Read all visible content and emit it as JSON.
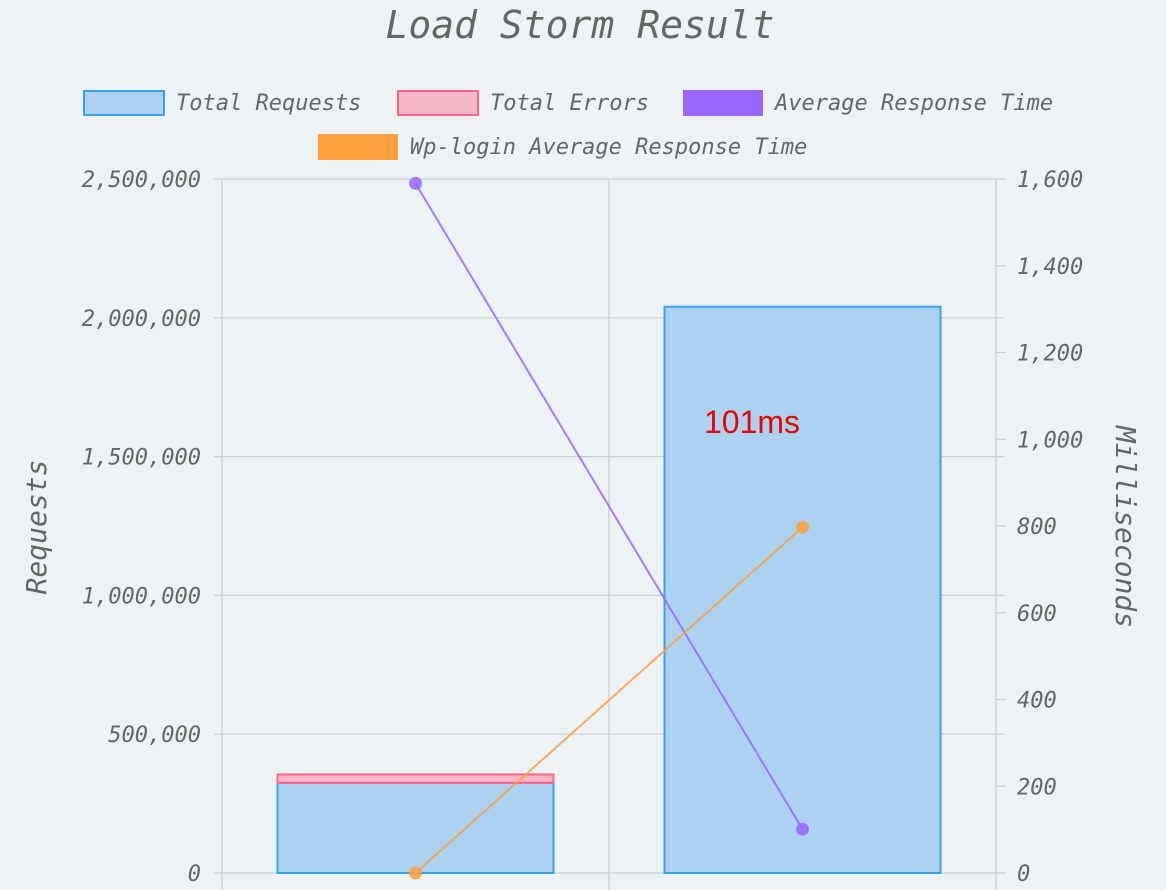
{
  "chart_data": {
    "type": "bar",
    "title": "Load Storm Result",
    "categories": [
      "",
      ""
    ],
    "legend_position": "top",
    "grid": true,
    "y_left": {
      "label": "Requests",
      "range": [
        0,
        2500000
      ],
      "ticks": [
        "0",
        "500,000",
        "1,000,000",
        "1,500,000",
        "2,000,000",
        "2,500,000"
      ],
      "tick_values": [
        0,
        500000,
        1000000,
        1500000,
        2000000,
        2500000
      ]
    },
    "y_right": {
      "label": "Milliseconds",
      "range": [
        0,
        1600
      ],
      "ticks": [
        "0",
        "200",
        "400",
        "600",
        "800",
        "1,000",
        "1,200",
        "1,400",
        "1,600"
      ],
      "tick_values": [
        0,
        200,
        400,
        600,
        800,
        1000,
        1200,
        1400,
        1600
      ]
    },
    "series": [
      {
        "name": "Total Requests",
        "type": "bar",
        "axis": "left",
        "stacked": true,
        "values": [
          325000,
          2040000
        ],
        "color": "#36a2eb",
        "fill": "#acd2f1"
      },
      {
        "name": "Total Errors",
        "type": "bar",
        "axis": "left",
        "stacked": true,
        "values": [
          30000,
          0
        ],
        "color": "#ff6384",
        "fill": "#f7b9c9"
      },
      {
        "name": "Average Response Time",
        "type": "line",
        "axis": "right",
        "values": [
          1590,
          101
        ],
        "color": "#9966ff"
      },
      {
        "name": "Wp-login Average Response Time",
        "type": "line",
        "axis": "right",
        "values": [
          0,
          797
        ],
        "color": "#ff9f40"
      }
    ],
    "annotations": [
      {
        "text": "101ms",
        "color": "#ee0000"
      }
    ]
  }
}
